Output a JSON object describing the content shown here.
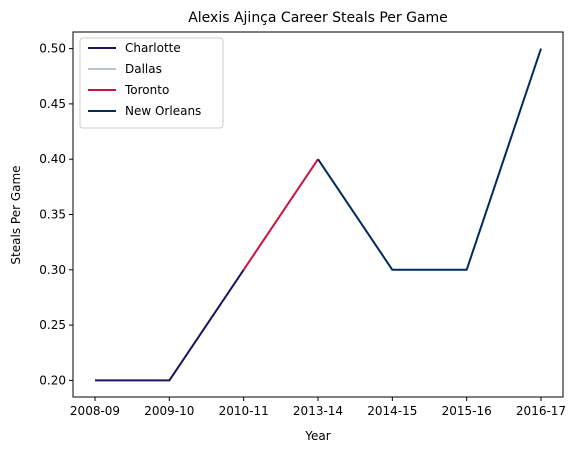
{
  "chart_data": {
    "type": "line",
    "title": "Alexis Ajinça Career Steals Per Game",
    "xlabel": "Year",
    "ylabel": "Steals Per Game",
    "categories": [
      "2008-09",
      "2009-10",
      "2010-11",
      "2013-14",
      "2014-15",
      "2015-16",
      "2016-17"
    ],
    "ylim": [
      0.185,
      0.515
    ],
    "yticks": [
      "0.20",
      "0.25",
      "0.30",
      "0.35",
      "0.40",
      "0.45",
      "0.50"
    ],
    "grid": false,
    "legend_position": "top-left",
    "series": [
      {
        "name": "Charlotte",
        "color": "#1d1160",
        "points": [
          {
            "x": "2008-09",
            "y": 0.2
          },
          {
            "x": "2009-10",
            "y": 0.2
          },
          {
            "x": "2010-11",
            "y": 0.3
          }
        ]
      },
      {
        "name": "Dallas",
        "color": "#bbc4ca",
        "points": [
          {
            "x": "2010-11",
            "y": 0.3
          }
        ]
      },
      {
        "name": "Toronto",
        "color": "#ce1141",
        "points": [
          {
            "x": "2010-11",
            "y": 0.3
          },
          {
            "x": "2013-14",
            "y": 0.4
          }
        ]
      },
      {
        "name": "New Orleans",
        "color": "#002b5c",
        "points": [
          {
            "x": "2013-14",
            "y": 0.4
          },
          {
            "x": "2014-15",
            "y": 0.3
          },
          {
            "x": "2015-16",
            "y": 0.3
          },
          {
            "x": "2016-17",
            "y": 0.5
          }
        ]
      }
    ]
  }
}
